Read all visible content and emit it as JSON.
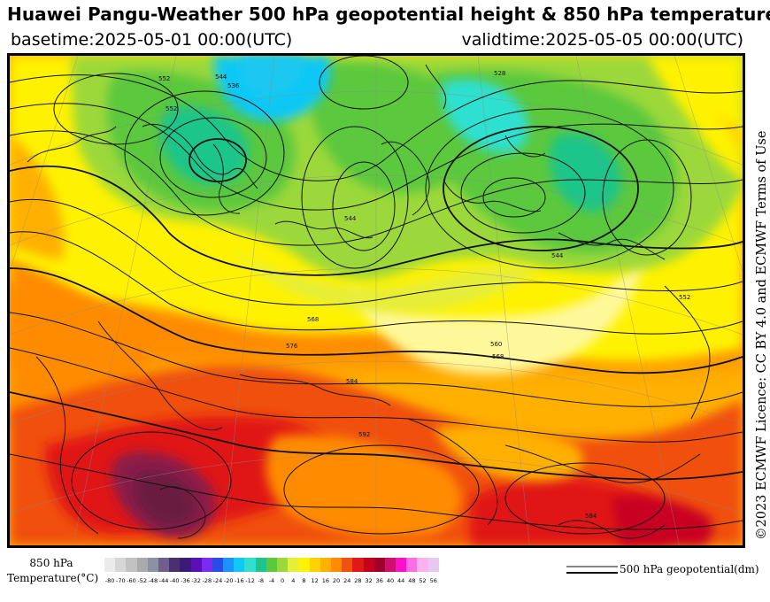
{
  "header": {
    "title": "Huawei Pangu-Weather 500 hPa geopotential height & 850 hPa temperature",
    "basetime": "basetime:2025-05-01 00:00(UTC)",
    "validtime": "validtime:2025-05-05 00:00(UTC)"
  },
  "licence": "©2023 ECMWF Licence: CC BY 4.0 and ECMWF Terms of Use",
  "map": {
    "contour_labels": [
      "552",
      "544",
      "536",
      "552",
      "528",
      "544",
      "544",
      "552",
      "568",
      "576",
      "584",
      "592",
      "560",
      "568",
      "584"
    ]
  },
  "colorbar": {
    "title_line1": "850 hPa",
    "title_line2": "Temperature(°C)",
    "ticks": [
      "-80",
      "-70",
      "-60",
      "-52",
      "-48",
      "-44",
      "-40",
      "-36",
      "-32",
      "-28",
      "-24",
      "-20",
      "-16",
      "-12",
      "-8",
      "-4",
      "0",
      "4",
      "8",
      "12",
      "16",
      "20",
      "24",
      "28",
      "32",
      "36",
      "40",
      "44",
      "48",
      "52",
      "56"
    ],
    "colors": [
      "#ebebeb",
      "#d6d6d6",
      "#c2c2c2",
      "#aaaaaa",
      "#8f8fa6",
      "#6f5f8f",
      "#4b2f6f",
      "#3c1a78",
      "#5a10b4",
      "#7a2cf0",
      "#2a4be6",
      "#1e90ff",
      "#10c8f5",
      "#2fe0d0",
      "#1ec58a",
      "#5cc83c",
      "#9cd83a",
      "#e6ee3a",
      "#fff200",
      "#ffd200",
      "#ffb000",
      "#ff8c00",
      "#f05010",
      "#e01818",
      "#c80020",
      "#a0002a",
      "#d0106e",
      "#ff10c8",
      "#ff6ee0",
      "#ffb0ee",
      "#e8c8f0"
    ]
  },
  "legend": {
    "label": "500 hPa geopotential(dm)"
  }
}
